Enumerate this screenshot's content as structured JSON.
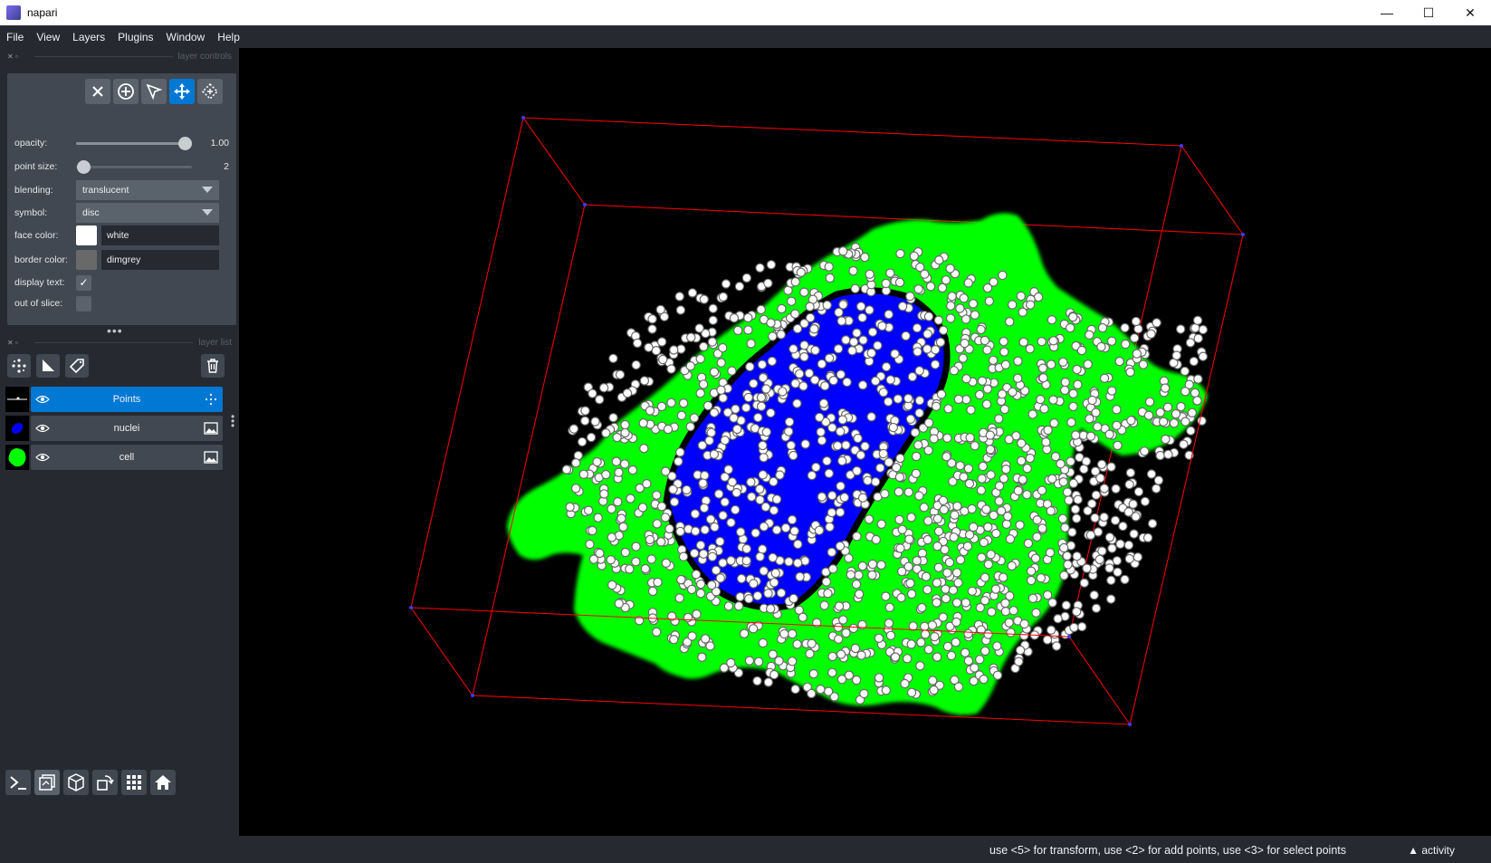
{
  "window": {
    "title": "napari",
    "minimize": "—",
    "maximize": "☐",
    "close": "✕"
  },
  "menu": [
    "File",
    "View",
    "Layers",
    "Plugins",
    "Window",
    "Help"
  ],
  "layer_controls": {
    "header": "layer controls",
    "modes": [
      "delete-selected",
      "add-points",
      "select-points",
      "pan-zoom",
      "transform"
    ],
    "active_mode": "pan-zoom",
    "opacity": {
      "label": "opacity:",
      "value": 1.0,
      "value_text": "1.00"
    },
    "point_size": {
      "label": "point size:",
      "value": 2,
      "value_text": "2"
    },
    "blending": {
      "label": "blending:",
      "value": "translucent"
    },
    "symbol": {
      "label": "symbol:",
      "value": "disc"
    },
    "face_color": {
      "label": "face color:",
      "value": "white",
      "swatch": "#ffffff"
    },
    "border_color": {
      "label": "border color:",
      "value": "dimgrey",
      "swatch": "#696969"
    },
    "display_text": {
      "label": "display text:",
      "checked": true
    },
    "out_of_slice": {
      "label": "out of slice:",
      "checked": false
    }
  },
  "layer_list": {
    "header": "layer list",
    "layers": [
      {
        "name": "Points",
        "type": "points",
        "visible": true,
        "selected": true
      },
      {
        "name": "nuclei",
        "type": "image",
        "visible": true,
        "selected": false
      },
      {
        "name": "cell",
        "type": "image",
        "visible": true,
        "selected": false
      }
    ]
  },
  "status": {
    "help": "use <5> for transform, use <2> for add points, use <3> for select points",
    "activity": "activity"
  },
  "colors": {
    "accent": "#0078d4",
    "cell": "#00ff00",
    "nuclei": "#0000ff",
    "bounding_box": "#ff0000",
    "points_face": "#ffffff"
  }
}
